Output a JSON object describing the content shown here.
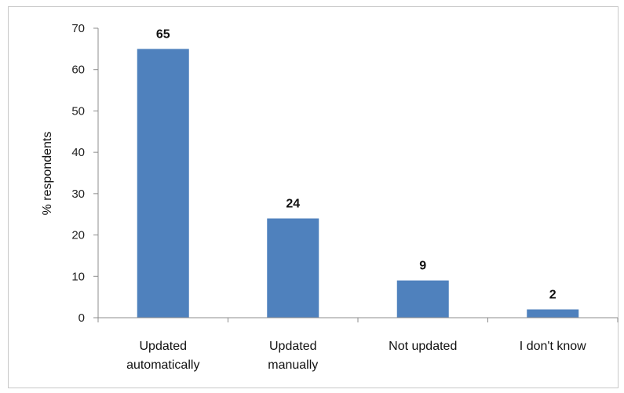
{
  "chart_data": {
    "type": "bar",
    "categories": [
      [
        "Updated",
        "automatically"
      ],
      [
        "Updated",
        "manually"
      ],
      [
        "Not updated"
      ],
      [
        "I don't know"
      ]
    ],
    "values": [
      65,
      24,
      9,
      2
    ],
    "data_labels": [
      "65",
      "24",
      "9",
      "2"
    ],
    "title": "",
    "xlabel": "",
    "ylabel": "% respondents",
    "ylim": [
      0,
      70
    ],
    "yticks": [
      "0",
      "10",
      "20",
      "30",
      "40",
      "50",
      "60",
      "70"
    ],
    "grid": false,
    "legend": "none",
    "bar_color": "#4f81bd"
  }
}
